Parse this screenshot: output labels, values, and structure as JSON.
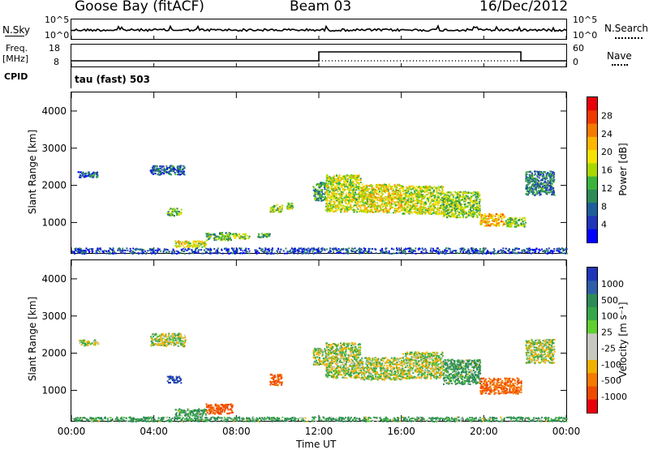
{
  "header": {
    "station": "Goose Bay (fitACF)",
    "beam": "Beam 03",
    "date": "16/Dec/2012"
  },
  "noise_panel": {
    "left_label": "N.Sky",
    "left_top_tick": "10^5",
    "left_bottom_tick": "10^0",
    "right_top_tick": "10^5",
    "right_bottom_tick": "10^0",
    "right_label": "N.Search"
  },
  "freq_panel": {
    "left_label_line1": "Freq.",
    "left_label_line2": "[MHz]",
    "left_top_tick": "18",
    "left_bottom_tick": "8",
    "right_top_tick": "60",
    "right_bottom_tick": "0",
    "right_label": "Nave",
    "step_up_hour": 12.0,
    "step_down_hour": 21.8
  },
  "cpid_panel": {
    "left_label": "CPID",
    "text": "tau (fast) 503"
  },
  "power_scale": {
    "title": "Power [dB]",
    "ticks": [
      "28",
      "24",
      "20",
      "16",
      "12",
      "8",
      "4"
    ],
    "colors": [
      "#e8000b",
      "#f03a00",
      "#f57a00",
      "#ffb600",
      "#f6e200",
      "#a8d800",
      "#3cb43c",
      "#2e8b57",
      "#1c5f9a",
      "#1f36b8",
      "#0000ff"
    ]
  },
  "velocity_scale": {
    "title": "Velocity [m s⁻¹]",
    "ticks": [
      "1000",
      "500",
      "100",
      "25",
      "-25",
      "-100",
      "-500",
      "-1000"
    ],
    "colors": [
      "#1f36b8",
      "#2c5fa8",
      "#2e8b57",
      "#37a84a",
      "#5fd030",
      "#c8c8c0",
      "#c8c8c0",
      "#f0b000",
      "#f57a00",
      "#f04a00",
      "#e8000b"
    ]
  },
  "axes": {
    "ylabel": "Slant Range [km]",
    "yticks": [
      "1000",
      "2000",
      "3000",
      "4000"
    ],
    "xlabel": "Time UT",
    "xticks": [
      "00:00",
      "04:00",
      "08:00",
      "12:00",
      "16:00",
      "20:00",
      "00:00"
    ]
  },
  "chart_data": [
    {
      "type": "heatmap",
      "title": "",
      "ylabel": "Slant Range [km]",
      "xlabel": "",
      "xlim": [
        0,
        24
      ],
      "ylim": [
        180,
        4500
      ],
      "colorbar": "Power [dB]",
      "zlim": [
        0,
        30
      ],
      "regions": [
        {
          "t": [
            0.3,
            1.3
          ],
          "r": [
            2220,
            2380
          ],
          "v": 6
        },
        {
          "t": [
            3.8,
            5.5
          ],
          "r": [
            2300,
            2550
          ],
          "v": 6
        },
        {
          "t": [
            4.6,
            5.3
          ],
          "r": [
            1200,
            1400
          ],
          "v": 12
        },
        {
          "t": [
            5.0,
            6.5
          ],
          "r": [
            350,
            520
          ],
          "v": 18
        },
        {
          "t": [
            6.5,
            7.8
          ],
          "r": [
            540,
            750
          ],
          "v": 12
        },
        {
          "t": [
            7.8,
            8.6
          ],
          "r": [
            580,
            720
          ],
          "v": 14
        },
        {
          "t": [
            9.0,
            9.6
          ],
          "r": [
            620,
            720
          ],
          "v": 10
        },
        {
          "t": [
            9.6,
            10.2
          ],
          "r": [
            1300,
            1500
          ],
          "v": 14
        },
        {
          "t": [
            10.4,
            10.7
          ],
          "r": [
            1380,
            1560
          ],
          "v": 14
        },
        {
          "t": [
            11.7,
            12.3
          ],
          "r": [
            1600,
            2100
          ],
          "v": 10
        },
        {
          "t": [
            12.3,
            14.0
          ],
          "r": [
            1300,
            2300
          ],
          "v": 16
        },
        {
          "t": [
            14.0,
            16.0
          ],
          "r": [
            1280,
            2050
          ],
          "v": 18
        },
        {
          "t": [
            16.0,
            18.0
          ],
          "r": [
            1240,
            2000
          ],
          "v": 16
        },
        {
          "t": [
            18.0,
            19.8
          ],
          "r": [
            1150,
            1850
          ],
          "v": 14
        },
        {
          "t": [
            19.8,
            21.0
          ],
          "r": [
            920,
            1250
          ],
          "v": 20
        },
        {
          "t": [
            21.0,
            22.0
          ],
          "r": [
            900,
            1150
          ],
          "v": 14
        },
        {
          "t": [
            22.0,
            23.4
          ],
          "r": [
            1750,
            2400
          ],
          "v": 8
        },
        {
          "t": [
            0.0,
            24.0
          ],
          "r": [
            180,
            330
          ],
          "v": 4
        }
      ]
    },
    {
      "type": "heatmap",
      "title": "",
      "ylabel": "Slant Range [km]",
      "xlabel": "Time UT",
      "xlim": [
        0,
        24
      ],
      "ylim": [
        180,
        4500
      ],
      "colorbar": "Velocity [m s⁻¹]",
      "zlim": [
        -1000,
        1000
      ],
      "regions": [
        {
          "t": [
            0.3,
            1.3
          ],
          "r": [
            2220,
            2380
          ],
          "v": 0
        },
        {
          "t": [
            3.8,
            5.5
          ],
          "r": [
            2200,
            2550
          ],
          "v": 0
        },
        {
          "t": [
            4.6,
            5.3
          ],
          "r": [
            1220,
            1400
          ],
          "v": 500
        },
        {
          "t": [
            5.0,
            6.5
          ],
          "r": [
            320,
            520
          ],
          "v": 40
        },
        {
          "t": [
            6.5,
            7.8
          ],
          "r": [
            380,
            650
          ],
          "v": -200
        },
        {
          "t": [
            9.6,
            10.2
          ],
          "r": [
            1150,
            1450
          ],
          "v": -200
        },
        {
          "t": [
            11.7,
            12.3
          ],
          "r": [
            1700,
            2150
          ],
          "v": 0
        },
        {
          "t": [
            12.3,
            14.0
          ],
          "r": [
            1350,
            2300
          ],
          "v": 0
        },
        {
          "t": [
            14.0,
            16.0
          ],
          "r": [
            1300,
            1900
          ],
          "v": 0
        },
        {
          "t": [
            16.0,
            18.0
          ],
          "r": [
            1330,
            2050
          ],
          "v": 0
        },
        {
          "t": [
            18.0,
            19.8
          ],
          "r": [
            1180,
            1850
          ],
          "v": 40
        },
        {
          "t": [
            19.8,
            21.8
          ],
          "r": [
            920,
            1350
          ],
          "v": -120
        },
        {
          "t": [
            22.0,
            23.4
          ],
          "r": [
            1750,
            2400
          ],
          "v": 0
        },
        {
          "t": [
            0.0,
            24.0
          ],
          "r": [
            180,
            300
          ],
          "v": 40
        }
      ]
    }
  ]
}
